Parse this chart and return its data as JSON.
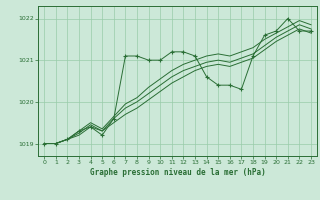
{
  "title": "Graphe pression niveau de la mer (hPa)",
  "xlim": [
    -0.5,
    23.5
  ],
  "ylim": [
    1018.7,
    1022.3
  ],
  "yticks": [
    1019,
    1020,
    1021,
    1022
  ],
  "xticks": [
    0,
    1,
    2,
    3,
    4,
    5,
    6,
    7,
    8,
    9,
    10,
    11,
    12,
    13,
    14,
    15,
    16,
    17,
    18,
    19,
    20,
    21,
    22,
    23
  ],
  "bg_color": "#cce8d8",
  "grid_color": "#99ccaa",
  "line_color": "#2a6e35",
  "marker": "+",
  "series_main": [
    1019.0,
    1019.0,
    1019.1,
    1019.3,
    1019.4,
    1019.2,
    1019.6,
    1021.1,
    1021.1,
    1021.0,
    1021.0,
    1021.2,
    1021.2,
    1021.1,
    1020.6,
    1020.4,
    1020.4,
    1020.3,
    1021.1,
    1021.6,
    1021.7,
    1022.0,
    1021.7,
    1021.7
  ],
  "series_smooth": [
    [
      1019.0,
      1019.0,
      1019.1,
      1019.2,
      1019.4,
      1019.3,
      1019.5,
      1019.7,
      1019.85,
      1020.05,
      1020.25,
      1020.45,
      1020.6,
      1020.75,
      1020.85,
      1020.9,
      1020.85,
      1020.95,
      1021.05,
      1021.25,
      1021.45,
      1021.6,
      1021.75,
      1021.65
    ],
    [
      1019.0,
      1019.0,
      1019.1,
      1019.25,
      1019.45,
      1019.3,
      1019.6,
      1019.85,
      1020.0,
      1020.2,
      1020.4,
      1020.6,
      1020.75,
      1020.85,
      1020.95,
      1021.0,
      1020.95,
      1021.05,
      1021.15,
      1021.35,
      1021.55,
      1021.7,
      1021.85,
      1021.75
    ],
    [
      1019.0,
      1019.0,
      1019.1,
      1019.3,
      1019.5,
      1019.35,
      1019.65,
      1019.95,
      1020.1,
      1020.35,
      1020.55,
      1020.75,
      1020.9,
      1021.0,
      1021.1,
      1021.15,
      1021.1,
      1021.2,
      1021.3,
      1021.5,
      1021.65,
      1021.8,
      1021.95,
      1021.85
    ]
  ]
}
